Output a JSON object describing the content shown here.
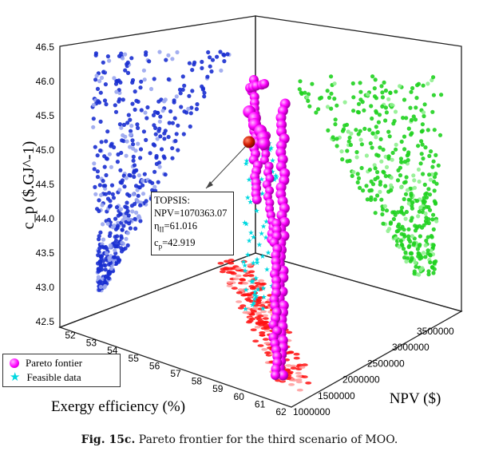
{
  "chart_data": {
    "type": "scatter",
    "title": "",
    "zlabel": "c_p ($.GJ^-1)",
    "xlabel": "Exergy efficiency (%)",
    "ylabel": "NPV ($)",
    "zticks": [
      "42.5",
      "43.0",
      "43.5",
      "44.0",
      "44.5",
      "45.0",
      "45.5",
      "46.0",
      "46.5"
    ],
    "xticks": [
      "52",
      "53",
      "54",
      "55",
      "56",
      "57",
      "58",
      "59",
      "60",
      "61",
      "62"
    ],
    "yticks": [
      "1000000",
      "1500000",
      "2000000",
      "2500000",
      "3000000",
      "3500000"
    ],
    "zlim": [
      42.5,
      46.5
    ],
    "xlim": [
      52,
      62
    ],
    "ylim": [
      1000000,
      3700000
    ],
    "series": [
      {
        "name": "Pareto fontier",
        "marker": "sphere",
        "color": "#ff00ff"
      },
      {
        "name": "Feasible data",
        "marker": "star",
        "color": "#00d8e0"
      }
    ],
    "projection_colors": {
      "exergy_cp_wall": "#1a2fd0",
      "npv_cp_wall": "#1fd11f",
      "floor": "#ff1010"
    },
    "topsis_point": {
      "label": "TOPSIS:",
      "npv": "NPV=1070363.07",
      "eta": "η",
      "eta_sub": "II",
      "eta_val": "=61.016",
      "cp": "c",
      "cp_sub": "p",
      "cp_val": "=42.919",
      "color": "#c81000"
    }
  },
  "legend": {
    "pareto": "Pareto fontier",
    "feasible": "Feasible data"
  },
  "caption": {
    "label": "Fig. 15c.",
    "text": "Pareto frontier for the third scenario of MOO."
  }
}
